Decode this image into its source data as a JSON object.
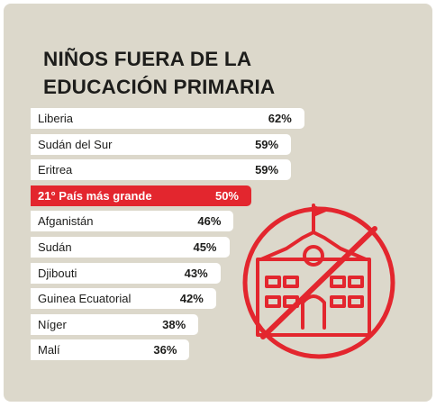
{
  "title_lines": [
    "NIÑOS FUERA DE LA",
    "EDUCACIÓN PRIMARIA"
  ],
  "colors": {
    "background": "#dcd8cb",
    "bar": "#ffffff",
    "highlight": "#e3262e",
    "text": "#1d1d1b"
  },
  "icon": "no-school-icon",
  "chart_data": {
    "type": "bar",
    "orientation": "horizontal",
    "title": "NIÑOS FUERA DE LA EDUCACIÓN PRIMARIA",
    "categories": [
      "Liberia",
      "Sudán del Sur",
      "Eritrea",
      "21° País más grande",
      "Afganistán",
      "Sudán",
      "Djibouti",
      "Guinea Ecuatorial",
      "Níger",
      "Malí"
    ],
    "values": [
      62,
      59,
      59,
      50,
      46,
      45,
      43,
      42,
      38,
      36
    ],
    "value_labels": [
      "62%",
      "59%",
      "59%",
      "50%",
      "46%",
      "45%",
      "43%",
      "42%",
      "38%",
      "36%"
    ],
    "highlighted_index": 3
  }
}
